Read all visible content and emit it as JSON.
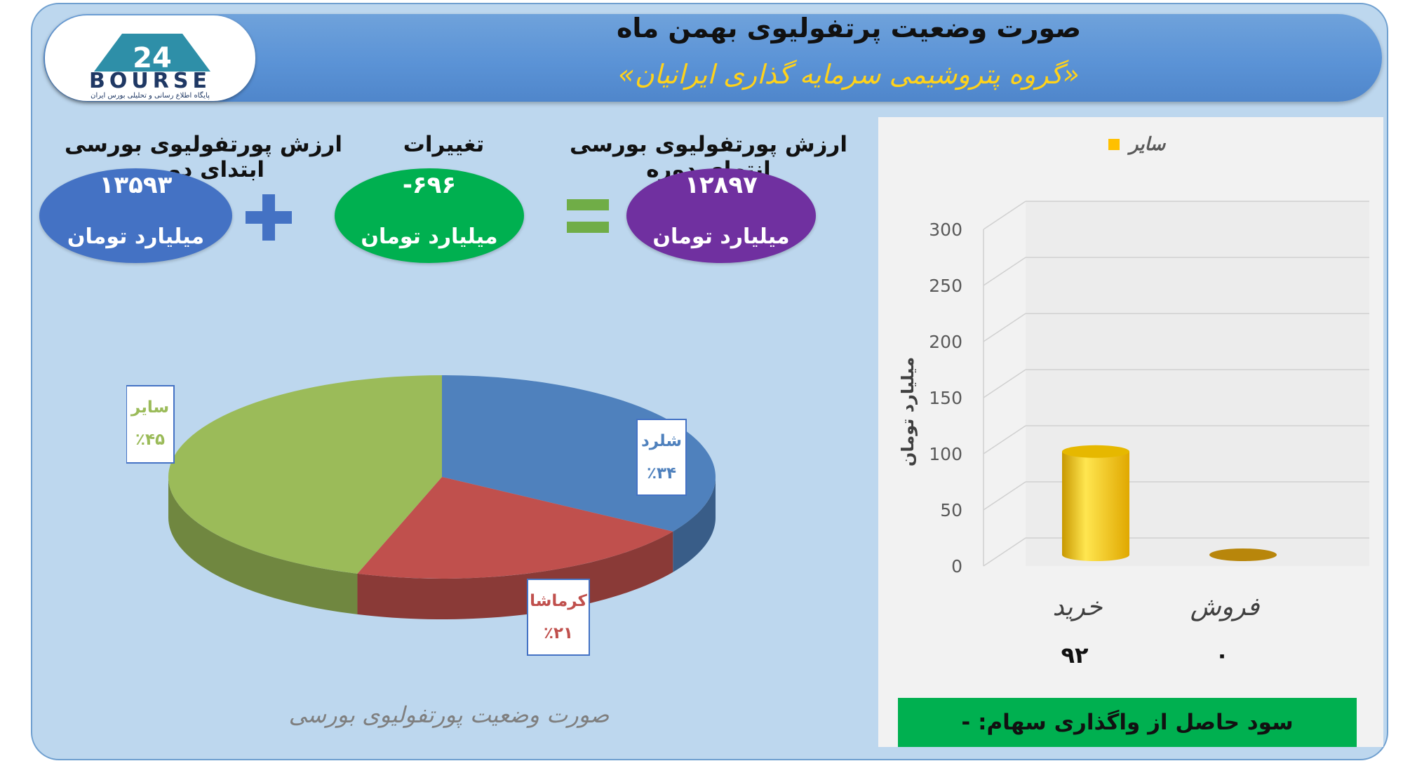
{
  "header": {
    "title": "صورت وضعیت پرتفولیوی بهمن ماه",
    "subtitle": "«گروه پتروشیمی سرمایه گذاری ایرانیان»",
    "logo_text": "BOURSE",
    "logo_number": "24",
    "logo_tagline": "پایگاه اطلاع رسانی و تحلیلی بورس ایران"
  },
  "summary": {
    "start": {
      "label": "ارزش پورتفولیوی بورسی ابتدای دوره",
      "value": "۱۳۵۹۳",
      "unit": "میلیارد تومان",
      "color": "#4472c4"
    },
    "change": {
      "label": "تغییرات",
      "value": "-۶۹۶",
      "unit": "میلیارد تومان",
      "color": "#00b050"
    },
    "end": {
      "label": "ارزش پورتفولیوی بورسی انتهای دوره",
      "value": "۱۲۸۹۷",
      "unit": "میلیارد تومان",
      "color": "#7030a0"
    },
    "plus_sign": "+",
    "equals_sign": "=",
    "plus_color": "#4472c4",
    "equals_color": "#70ad47"
  },
  "pie_caption": "صورت وضعیت پورتفولیوی بورسی",
  "profit_text": "سود حاصل از واگذاری سهام: -",
  "chart_data": [
    {
      "type": "pie",
      "title": "",
      "slices": [
        {
          "label": "شلرد",
          "percent_label": "٪۳۴",
          "value": 34,
          "color": "#4f81bd",
          "label_color": "#4f81bd"
        },
        {
          "label": "کرماشا",
          "percent_label": "٪۲۱",
          "value": 21,
          "color": "#c0504d",
          "label_color": "#c0504d"
        },
        {
          "label": "سایر",
          "percent_label": "٪۴۵",
          "value": 45,
          "color": "#9bbb59",
          "label_color": "#9bbb59"
        }
      ]
    },
    {
      "type": "bar",
      "categories": [
        "خرید",
        "فروش"
      ],
      "series": [
        {
          "name": "سایر",
          "values": [
            92,
            0
          ],
          "color": "#ffc000"
        }
      ],
      "data_labels": [
        "۹۲",
        "۰"
      ],
      "ylabel": "میلیارد تومان",
      "ylim": [
        0,
        300
      ],
      "yticks": [
        "0",
        "50",
        "100",
        "150",
        "200",
        "250",
        "300"
      ],
      "grid": true,
      "legend": "top"
    }
  ]
}
